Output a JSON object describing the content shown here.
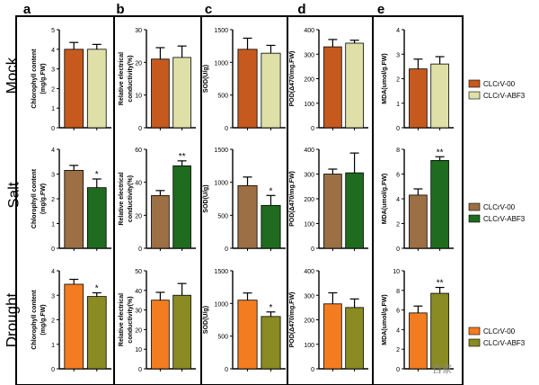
{
  "figure": {
    "panel_letters": [
      "a",
      "b",
      "c",
      "d",
      "e"
    ],
    "row_labels": [
      "Mock",
      "Salt",
      "Drought"
    ],
    "watermark": "百家"
  },
  "colors": {
    "mock_series1": "#c65a1e",
    "mock_series2": "#dfe0a8",
    "salt_series1": "#9c6f44",
    "salt_series2": "#1f6b1f",
    "drought_series1": "#f47c20",
    "drought_series2": "#8a8b22"
  },
  "legends": [
    {
      "row": "Mock",
      "entries": [
        {
          "label": "CLCrV-00",
          "color": "#c65a1e"
        },
        {
          "label": "CLCrV-ABF3",
          "color": "#dfe0a8"
        }
      ]
    },
    {
      "row": "Salt",
      "entries": [
        {
          "label": "CLCrV-00",
          "color": "#9c6f44"
        },
        {
          "label": "CLCrV-ABF3",
          "color": "#1f6b1f"
        }
      ]
    },
    {
      "row": "Drought",
      "entries": [
        {
          "label": "CLCrV-00",
          "color": "#f47c20"
        },
        {
          "label": "CLCrV-ABF3",
          "color": "#8a8b22"
        }
      ]
    }
  ],
  "chart_data": [
    {
      "type": "bar",
      "panel": "a",
      "row": "Mock",
      "ylabel": "Chlorophyll content (mg/g.FW)",
      "ylim": [
        0,
        5
      ],
      "yticks": [
        0,
        1,
        2,
        3,
        4,
        5
      ],
      "tick_labels": [
        "0",
        "1",
        "2",
        "3",
        "4",
        "5"
      ],
      "categories": [
        "CLCrV-00",
        "CLCrV-ABF3"
      ],
      "values": [
        4.0,
        4.0
      ],
      "errors": [
        0.35,
        0.25
      ],
      "significance": [
        "",
        ""
      ]
    },
    {
      "type": "bar",
      "panel": "b",
      "row": "Mock",
      "ylabel": "Relative electrical conductivity(%)",
      "ylim": [
        0,
        30
      ],
      "yticks": [
        0,
        10,
        20,
        30
      ],
      "tick_labels": [
        "0",
        "10",
        "20",
        "30"
      ],
      "categories": [
        "CLCrV-00",
        "CLCrV-ABF3"
      ],
      "values": [
        21,
        21.5
      ],
      "errors": [
        3.5,
        3.5
      ],
      "significance": [
        "",
        ""
      ]
    },
    {
      "type": "bar",
      "panel": "c",
      "row": "Mock",
      "ylabel": "SOD(U/g)",
      "ylim": [
        0,
        1500
      ],
      "yticks": [
        0,
        500,
        1000,
        1500
      ],
      "tick_labels": [
        "0",
        "500",
        "1000",
        "1500"
      ],
      "categories": [
        "CLCrV-00",
        "CLCrV-ABF3"
      ],
      "values": [
        1200,
        1140
      ],
      "errors": [
        170,
        120
      ],
      "significance": [
        "",
        ""
      ]
    },
    {
      "type": "bar",
      "panel": "d",
      "row": "Mock",
      "ylabel": "POD(Δ470/mg.FW)",
      "ylim": [
        0,
        400
      ],
      "yticks": [
        0,
        100,
        200,
        300,
        400
      ],
      "tick_labels": [
        "0",
        "100",
        "200",
        "300",
        "400"
      ],
      "categories": [
        "CLCrV-00",
        "CLCrV-ABF3"
      ],
      "values": [
        330,
        345
      ],
      "errors": [
        30,
        12
      ],
      "significance": [
        "",
        ""
      ]
    },
    {
      "type": "bar",
      "panel": "e",
      "row": "Mock",
      "ylabel": "MDA(umol/g.FW)",
      "ylim": [
        0,
        4
      ],
      "yticks": [
        0,
        1,
        2,
        3,
        4
      ],
      "tick_labels": [
        "0",
        "1",
        "2",
        "3",
        "4"
      ],
      "categories": [
        "CLCrV-00",
        "CLCrV-ABF3"
      ],
      "values": [
        2.4,
        2.6
      ],
      "errors": [
        0.4,
        0.3
      ],
      "significance": [
        "",
        ""
      ]
    },
    {
      "type": "bar",
      "panel": "a",
      "row": "Salt",
      "ylabel": "Chlorophyll content (mg/g.FW)",
      "ylim": [
        0,
        4
      ],
      "yticks": [
        0,
        1,
        2,
        3,
        4
      ],
      "tick_labels": [
        "0",
        "1",
        "2",
        "3",
        "4"
      ],
      "categories": [
        "CLCrV-00",
        "CLCrV-ABF3"
      ],
      "values": [
        3.15,
        2.45
      ],
      "errors": [
        0.2,
        0.35
      ],
      "significance": [
        "",
        "*"
      ]
    },
    {
      "type": "bar",
      "panel": "b",
      "row": "Salt",
      "ylabel": "Relative electrical conductivity(%)",
      "ylim": [
        0,
        60
      ],
      "yticks": [
        0,
        20,
        40,
        60
      ],
      "tick_labels": [
        "0",
        "20",
        "40",
        "60"
      ],
      "categories": [
        "CLCrV-00",
        "CLCrV-ABF3"
      ],
      "values": [
        32,
        50
      ],
      "errors": [
        3,
        3
      ],
      "significance": [
        "",
        "**"
      ]
    },
    {
      "type": "bar",
      "panel": "c",
      "row": "Salt",
      "ylabel": "SOD(U/g)",
      "ylim": [
        0,
        1500
      ],
      "yticks": [
        0,
        500,
        1000,
        1500
      ],
      "tick_labels": [
        "0",
        "500",
        "1000",
        "1500"
      ],
      "categories": [
        "CLCrV-00",
        "CLCrV-ABF3"
      ],
      "values": [
        950,
        650
      ],
      "errors": [
        130,
        150
      ],
      "significance": [
        "",
        "*"
      ]
    },
    {
      "type": "bar",
      "panel": "d",
      "row": "Salt",
      "ylabel": "POD(Δ470/mg.FW)",
      "ylim": [
        0,
        400
      ],
      "yticks": [
        0,
        100,
        200,
        300,
        400
      ],
      "tick_labels": [
        "0",
        "100",
        "200",
        "300",
        "400"
      ],
      "categories": [
        "CLCrV-00",
        "CLCrV-ABF3"
      ],
      "values": [
        300,
        305
      ],
      "errors": [
        20,
        80
      ],
      "significance": [
        "",
        ""
      ]
    },
    {
      "type": "bar",
      "panel": "e",
      "row": "Salt",
      "ylabel": "MDA(umol/g.FW)",
      "ylim": [
        0,
        8
      ],
      "yticks": [
        0,
        2,
        4,
        6,
        8
      ],
      "tick_labels": [
        "0",
        "2",
        "4",
        "6",
        "8"
      ],
      "categories": [
        "CLCrV-00",
        "CLCrV-ABF3"
      ],
      "values": [
        4.3,
        7.1
      ],
      "errors": [
        0.5,
        0.3
      ],
      "significance": [
        "",
        "**"
      ]
    },
    {
      "type": "bar",
      "panel": "a",
      "row": "Drought",
      "ylabel": "Chlorophyll content (mg/g.FW)",
      "ylim": [
        0,
        4
      ],
      "yticks": [
        0,
        1,
        2,
        3,
        4
      ],
      "tick_labels": [
        "0",
        "1",
        "2",
        "3",
        "4"
      ],
      "categories": [
        "CLCrV-00",
        "CLCrV-ABF3"
      ],
      "values": [
        3.45,
        2.95
      ],
      "errors": [
        0.2,
        0.15
      ],
      "significance": [
        "",
        "*"
      ]
    },
    {
      "type": "bar",
      "panel": "b",
      "row": "Drought",
      "ylabel": "Relative electrical conductivity(%)",
      "ylim": [
        0,
        50
      ],
      "yticks": [
        0,
        10,
        20,
        30,
        40,
        50
      ],
      "tick_labels": [
        "0",
        "10",
        "20",
        "30",
        "40",
        "50"
      ],
      "categories": [
        "CLCrV-00",
        "CLCrV-ABF3"
      ],
      "values": [
        35,
        37.5
      ],
      "errors": [
        4,
        6
      ],
      "significance": [
        "",
        ""
      ]
    },
    {
      "type": "bar",
      "panel": "c",
      "row": "Drought",
      "ylabel": "SOD(U/g)",
      "ylim": [
        0,
        1500
      ],
      "yticks": [
        0,
        500,
        1000,
        1500
      ],
      "tick_labels": [
        "0",
        "500",
        "1000",
        "1500"
      ],
      "categories": [
        "CLCrV-00",
        "CLCrV-ABF3"
      ],
      "values": [
        1050,
        800
      ],
      "errors": [
        110,
        70
      ],
      "significance": [
        "",
        "*"
      ]
    },
    {
      "type": "bar",
      "panel": "d",
      "row": "Drought",
      "ylabel": "POD(Δ470/mg.FW)",
      "ylim": [
        0,
        400
      ],
      "yticks": [
        0,
        100,
        200,
        300,
        400
      ],
      "tick_labels": [
        "0",
        "100",
        "200",
        "300",
        "400"
      ],
      "categories": [
        "CLCrV-00",
        "CLCrV-ABF3"
      ],
      "values": [
        265,
        250
      ],
      "errors": [
        45,
        35
      ],
      "significance": [
        "",
        ""
      ]
    },
    {
      "type": "bar",
      "panel": "e",
      "row": "Drought",
      "ylabel": "MDA(umol/g.FW)",
      "ylim": [
        0,
        10
      ],
      "yticks": [
        0,
        2,
        4,
        6,
        8,
        10
      ],
      "tick_labels": [
        "0",
        "2",
        "4",
        "6",
        "8",
        "10"
      ],
      "categories": [
        "CLCrV-00",
        "CLCrV-ABF3"
      ],
      "values": [
        5.7,
        7.7
      ],
      "errors": [
        0.7,
        0.6
      ],
      "significance": [
        "",
        "**"
      ]
    }
  ]
}
